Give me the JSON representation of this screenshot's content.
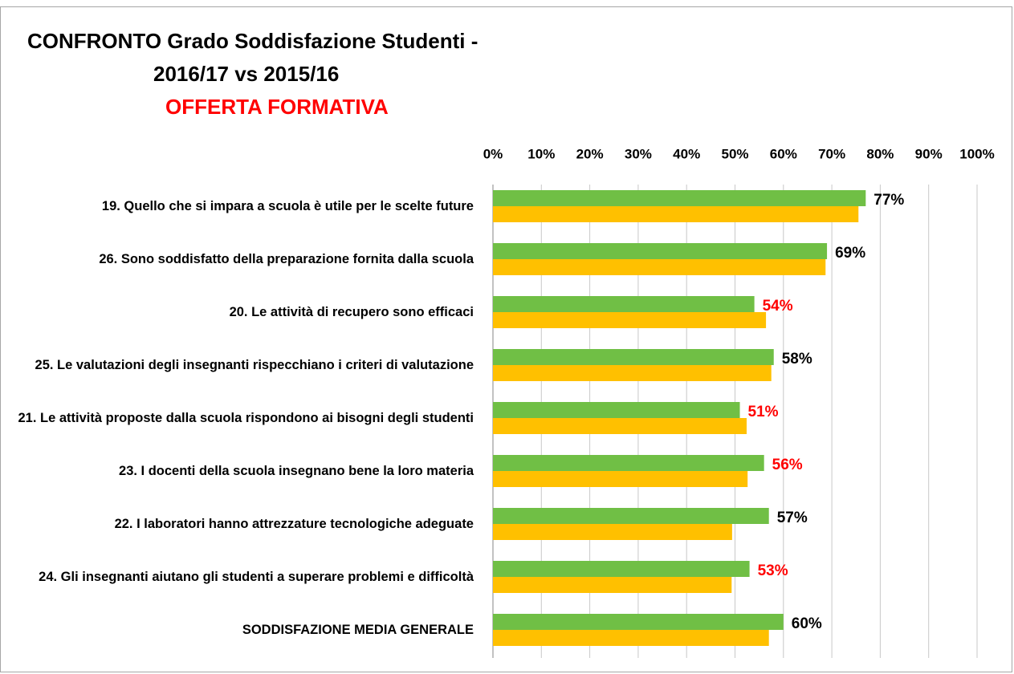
{
  "chart_data": {
    "type": "bar",
    "orientation": "horizontal",
    "title": [
      "CONFRONTO Grado Soddisfazione Studenti -",
      "2016/17 vs 2015/16"
    ],
    "subtitle": "OFFERTA FORMATIVA",
    "categories": [
      "19. Quello che si impara a scuola è utile per le scelte future",
      "26. Sono soddisfatto della preparazione fornita dalla scuola",
      "20. Le attività di recupero sono efficaci",
      "25. Le valutazioni degli insegnanti rispecchiano i criteri di valutazione",
      "21. Le attività proposte dalla scuola rispondono ai bisogni degli studenti",
      "23. I docenti della scuola insegnano bene la loro materia",
      "22. I laboratori hanno attrezzature tecnologiche adeguate",
      "24. Gli insegnanti aiutano gli studenti a superare problemi e difficoltà",
      "SODDISFAZIONE MEDIA GENERALE"
    ],
    "series": [
      {
        "color": "#70bf45",
        "values": [
          77,
          69,
          54,
          58,
          51,
          56,
          57,
          53,
          60
        ],
        "value_labels": [
          "77%",
          "69%",
          "54%",
          "58%",
          "51%",
          "56%",
          "57%",
          "53%",
          "60%"
        ],
        "value_label_colors": [
          "#000000",
          "#000000",
          "#ff0000",
          "#000000",
          "#ff0000",
          "#ff0000",
          "#000000",
          "#ff0000",
          "#000000"
        ]
      },
      {
        "color": "#ffc000",
        "values": [
          75.5,
          68.7,
          56.4,
          57.5,
          52.4,
          52.6,
          49.4,
          49.3,
          57
        ]
      }
    ],
    "xlim": [
      0,
      100
    ],
    "xticks": [
      {
        "value": 0,
        "label": "0%"
      },
      {
        "value": 10,
        "label": "10%"
      },
      {
        "value": 20,
        "label": "20%"
      },
      {
        "value": 30,
        "label": "30%"
      },
      {
        "value": 40,
        "label": "40%"
      },
      {
        "value": 50,
        "label": "50%"
      },
      {
        "value": 60,
        "label": "60%"
      },
      {
        "value": 70,
        "label": "70%"
      },
      {
        "value": 80,
        "label": "80%"
      },
      {
        "value": 90,
        "label": "90%"
      },
      {
        "value": 100,
        "label": "100%"
      }
    ],
    "grid": true,
    "subtitle_color": "#ff0000"
  }
}
